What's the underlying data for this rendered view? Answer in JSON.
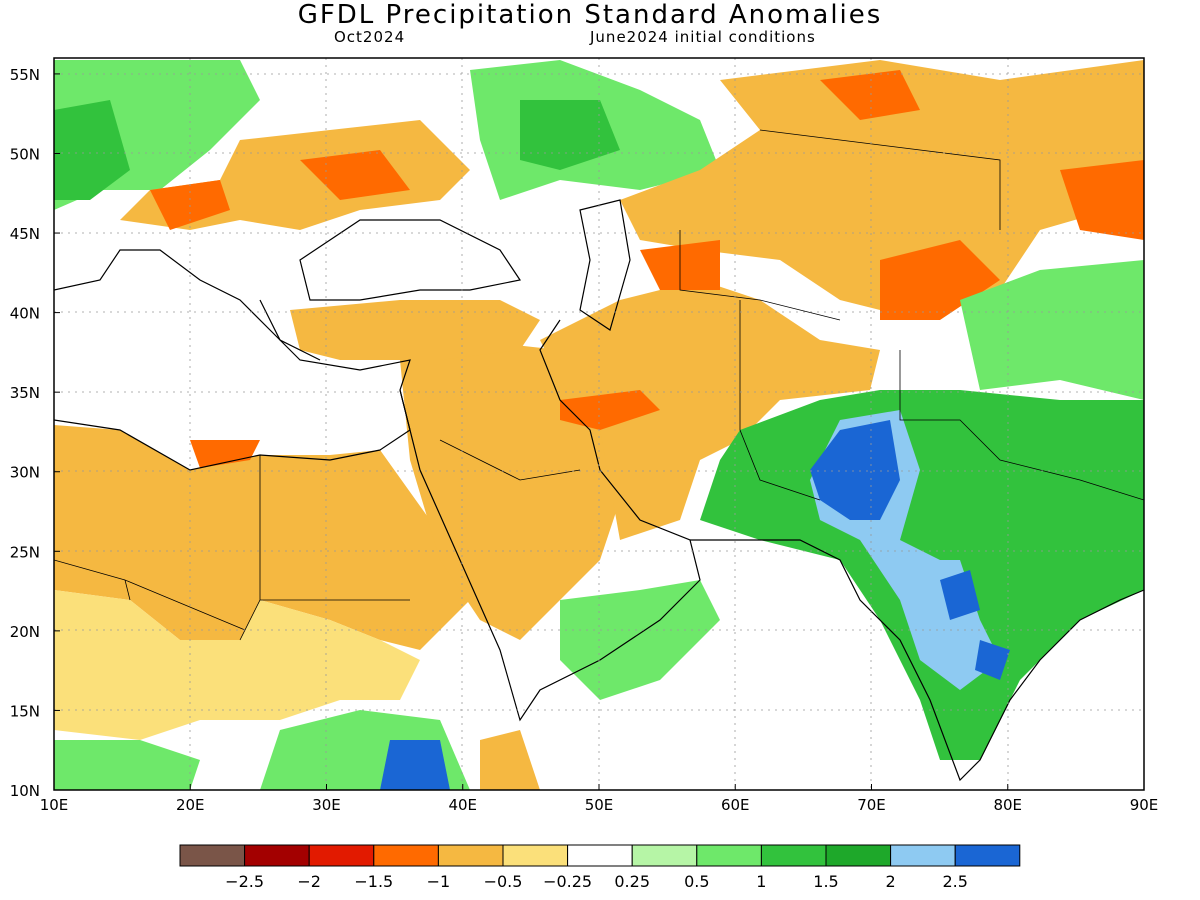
{
  "title": "GFDL Precipitation Standard Anomalies",
  "subtitle_left": "Oct2024",
  "subtitle_right": "June2024 initial conditions",
  "axes": {
    "lon_labels": [
      "10E",
      "20E",
      "30E",
      "40E",
      "50E",
      "60E",
      "70E",
      "80E",
      "90E"
    ],
    "lat_labels": [
      "10N",
      "15N",
      "20N",
      "25N",
      "30N",
      "35N",
      "40N",
      "45N",
      "50N",
      "55N"
    ],
    "lon_range": [
      10,
      90
    ],
    "lat_range": [
      10,
      56
    ]
  },
  "colorbar": {
    "colors": [
      "#7a5548",
      "#a30000",
      "#e21a00",
      "#ff6a00",
      "#f5b841",
      "#fbe07a",
      "#ffffff",
      "#b6f5a6",
      "#6ee86a",
      "#32c23d",
      "#1ea82a",
      "#8ecaf2",
      "#1a66d4"
    ],
    "labels": [
      "−2.5",
      "−2",
      "−1.5",
      "−1",
      "−0.5",
      "−0.25",
      "0.25",
      "0.5",
      "1",
      "1.5",
      "2",
      "2.5"
    ]
  },
  "regions": [
    {
      "name": "north-africa-dry",
      "color": "#f5b841"
    },
    {
      "name": "sahel-mild",
      "color": "#fbe07a"
    },
    {
      "name": "arabia-dry",
      "color": "#f5b841"
    },
    {
      "name": "iran-dry",
      "color": "#f5b841"
    },
    {
      "name": "kazakhstan-dry",
      "color": "#f5b841"
    },
    {
      "name": "south-asia-wet",
      "color": "#32c23d"
    },
    {
      "name": "pakistan-very-wet",
      "color": "#1a66d4"
    },
    {
      "name": "europe-wet",
      "color": "#6ee86a"
    }
  ]
}
